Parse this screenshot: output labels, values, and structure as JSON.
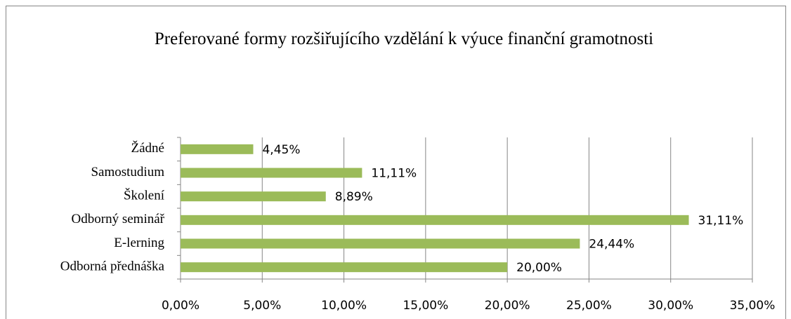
{
  "chart_data": {
    "type": "bar",
    "orientation": "horizontal",
    "title": "Preferované formy rozšiřujícího vzdělání k výuce finanční gramotnosti",
    "categories": [
      "Žádné",
      "Samostudium",
      "Školení",
      "Odborný seminář",
      "E-lerning",
      "Odborná přednáška"
    ],
    "values": [
      4.45,
      11.11,
      8.89,
      31.11,
      24.44,
      20.0
    ],
    "value_labels": [
      "4,45%",
      "11,11%",
      "8,89%",
      "31,11%",
      "24,44%",
      "20,00%"
    ],
    "color": "#9bbb59",
    "xlim": [
      0,
      35
    ],
    "xticks": [
      {
        "value": 0,
        "label": "0,00%"
      },
      {
        "value": 5,
        "label": "5,00%"
      },
      {
        "value": 10,
        "label": "10,00%"
      },
      {
        "value": 15,
        "label": "15,00%"
      },
      {
        "value": 20,
        "label": "20,00%"
      },
      {
        "value": 25,
        "label": "25,00%"
      },
      {
        "value": 30,
        "label": "30,00%"
      },
      {
        "value": 35,
        "label": "35,00%"
      }
    ],
    "grid": true
  }
}
